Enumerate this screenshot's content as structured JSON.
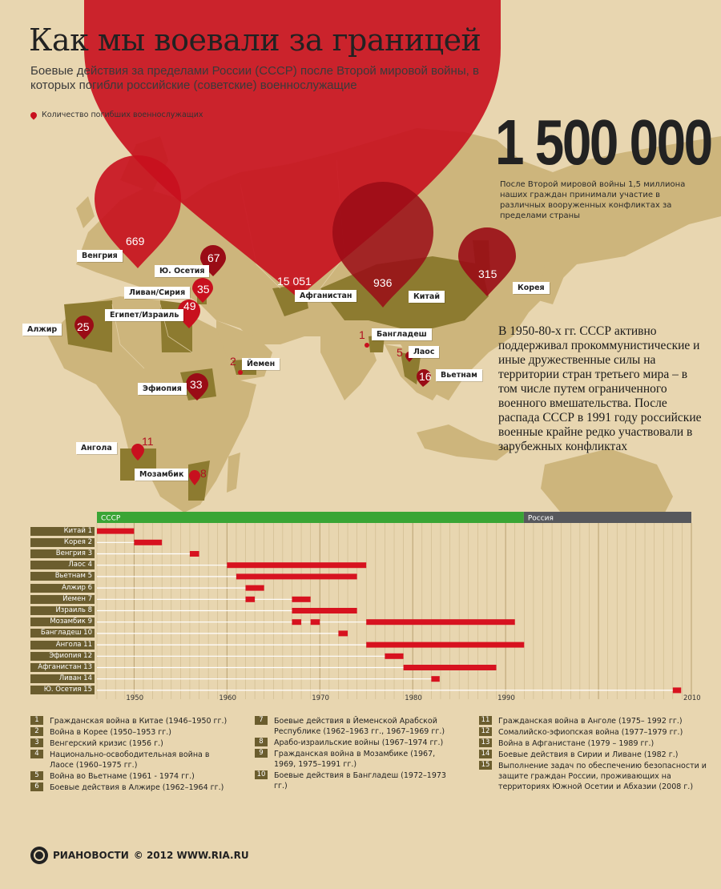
{
  "header": {
    "title": "Как мы воевали за границей",
    "subtitle": "Боевые действия за пределами России (СССР) после Второй мировой войны, в которых погибли российские (советские) военнослужащие",
    "legend_label": "Количество погибших военнослужащих"
  },
  "summary": {
    "big_number": "1 500 000",
    "description": "После Второй мировой войны 1,5 миллиона наших граждан принимали участие в различных вооруженных конфликтах за пределами страны",
    "body_text": "В 1950-80-х гг. СССР активно поддерживал прокоммунистические и иные дружественные силы на территории стран третьего мира – в том числе путем ограниченного военного вмешательства. После распада СССР в 1991 году российские военные крайне редко участвовали в зарубежных конфликтах"
  },
  "map_markers": [
    {
      "country": "Венгрия",
      "count": "669"
    },
    {
      "country": "Ю. Осетия",
      "count": "67"
    },
    {
      "country": "Ливан/Сирия",
      "count": "35"
    },
    {
      "country": "Египет/Израиль",
      "count": "49"
    },
    {
      "country": "Алжир",
      "count": "25"
    },
    {
      "country": "Афганистан",
      "count": "15 051"
    },
    {
      "country": "Китай",
      "count": "936"
    },
    {
      "country": "Корея",
      "count": "315"
    },
    {
      "country": "Бангладеш",
      "count": "1"
    },
    {
      "country": "Лаос",
      "count": "5"
    },
    {
      "country": "Вьетнам",
      "count": "16"
    },
    {
      "country": "Йемен",
      "count": "2"
    },
    {
      "country": "Эфиопия",
      "count": "33"
    },
    {
      "country": "Ангола",
      "count": "11"
    },
    {
      "country": "Мозамбик",
      "count": "8"
    }
  ],
  "timeline": {
    "periods": [
      {
        "label": "СССР",
        "start": 1946,
        "end": 1991.96,
        "color": "#3aa535"
      },
      {
        "label": "Россия",
        "start": 1991.96,
        "end": 2010,
        "color": "#57585c"
      }
    ],
    "axis_ticks": [
      "1950",
      "1960",
      "1970",
      "1980",
      "1990",
      "2010"
    ],
    "x_range": [
      1946,
      2010
    ],
    "bar_color": "#d7121f",
    "rows": [
      {
        "label": "Китай 1",
        "spans": [
          [
            1946,
            1950
          ]
        ]
      },
      {
        "label": "Корея 2",
        "spans": [
          [
            1950,
            1953
          ]
        ]
      },
      {
        "label": "Венгрия  3",
        "spans": [
          [
            1956,
            1957
          ]
        ]
      },
      {
        "label": "Лаос 4",
        "spans": [
          [
            1960,
            1975
          ]
        ]
      },
      {
        "label": "Вьетнам 5",
        "spans": [
          [
            1961,
            1974
          ]
        ]
      },
      {
        "label": "Алжир 6",
        "spans": [
          [
            1962,
            1964
          ]
        ]
      },
      {
        "label": "Йемен 7",
        "spans": [
          [
            1962,
            1963
          ],
          [
            1967,
            1969
          ]
        ]
      },
      {
        "label": "Израиль 8",
        "spans": [
          [
            1967,
            1974
          ]
        ]
      },
      {
        "label": "Мозамбик 9",
        "spans": [
          [
            1967,
            1968
          ],
          [
            1969,
            1970
          ],
          [
            1975,
            1991
          ]
        ]
      },
      {
        "label": "Бангладеш 10",
        "spans": [
          [
            1972,
            1973
          ]
        ]
      },
      {
        "label": "Ангола 11",
        "spans": [
          [
            1975,
            1992
          ]
        ]
      },
      {
        "label": "Эфиопия 12",
        "spans": [
          [
            1977,
            1979
          ]
        ]
      },
      {
        "label": "Афганистан 13",
        "spans": [
          [
            1979,
            1989
          ]
        ]
      },
      {
        "label": "Ливан 14",
        "spans": [
          [
            1982,
            1982.9
          ]
        ]
      },
      {
        "label": "Ю. Осетия 15",
        "spans": [
          [
            2008,
            2008.9
          ]
        ]
      }
    ]
  },
  "notes": [
    {
      "num": "1",
      "text": "Гражданская война в Китае (1946–1950 гг.)"
    },
    {
      "num": "2",
      "text": "Война в Корее (1950–1953 гг.)"
    },
    {
      "num": "3",
      "text": "Венгерский кризис (1956 г.)"
    },
    {
      "num": "4",
      "text": "Национально-освободительная война в Лаосе (1960–1975 гг.)"
    },
    {
      "num": "5",
      "text": "Война во Вьетнаме (1961 - 1974 гг.)"
    },
    {
      "num": "6",
      "text": "Боевые действия в Алжире (1962–1964 гг.)"
    },
    {
      "num": "7",
      "text": "Боевые действия в Йеменской Арабской Республике (1962–1963 гг., 1967–1969 гг.)"
    },
    {
      "num": "8",
      "text": "Арабо-израильские войны (1967–1974 гг.)"
    },
    {
      "num": "9",
      "text": "Гражданская война в Мозамбике (1967, 1969, 1975–1991 гг.)"
    },
    {
      "num": "10",
      "text": "Боевые действия в Бангладеш (1972–1973 гг.)"
    },
    {
      "num": "11",
      "text": "Гражданская война в Анголе (1975– 1992 гг.)"
    },
    {
      "num": "12",
      "text": "Сомалийско-эфиопская война (1977–1979 гг.)"
    },
    {
      "num": "13",
      "text": "Война в Афганистане (1979 – 1989 гг.)"
    },
    {
      "num": "14",
      "text": "Боевые действия в Сирии и Ливане (1982 г.)"
    },
    {
      "num": "15",
      "text": "Выполнение задач по обеспечению безопасности и защите граждан России, проживающих на территориях Южной Осетии и Абхазии (2008 г.)"
    }
  ],
  "footer": {
    "brand": "РИАНОВОСТИ",
    "copyright": "© 2012 WWW.RIA.RU"
  },
  "colors": {
    "background": "#e8d6b0",
    "land": "#cdb57c",
    "highlighted_country": "#8d7b30",
    "marker_red": "#c8101e"
  }
}
